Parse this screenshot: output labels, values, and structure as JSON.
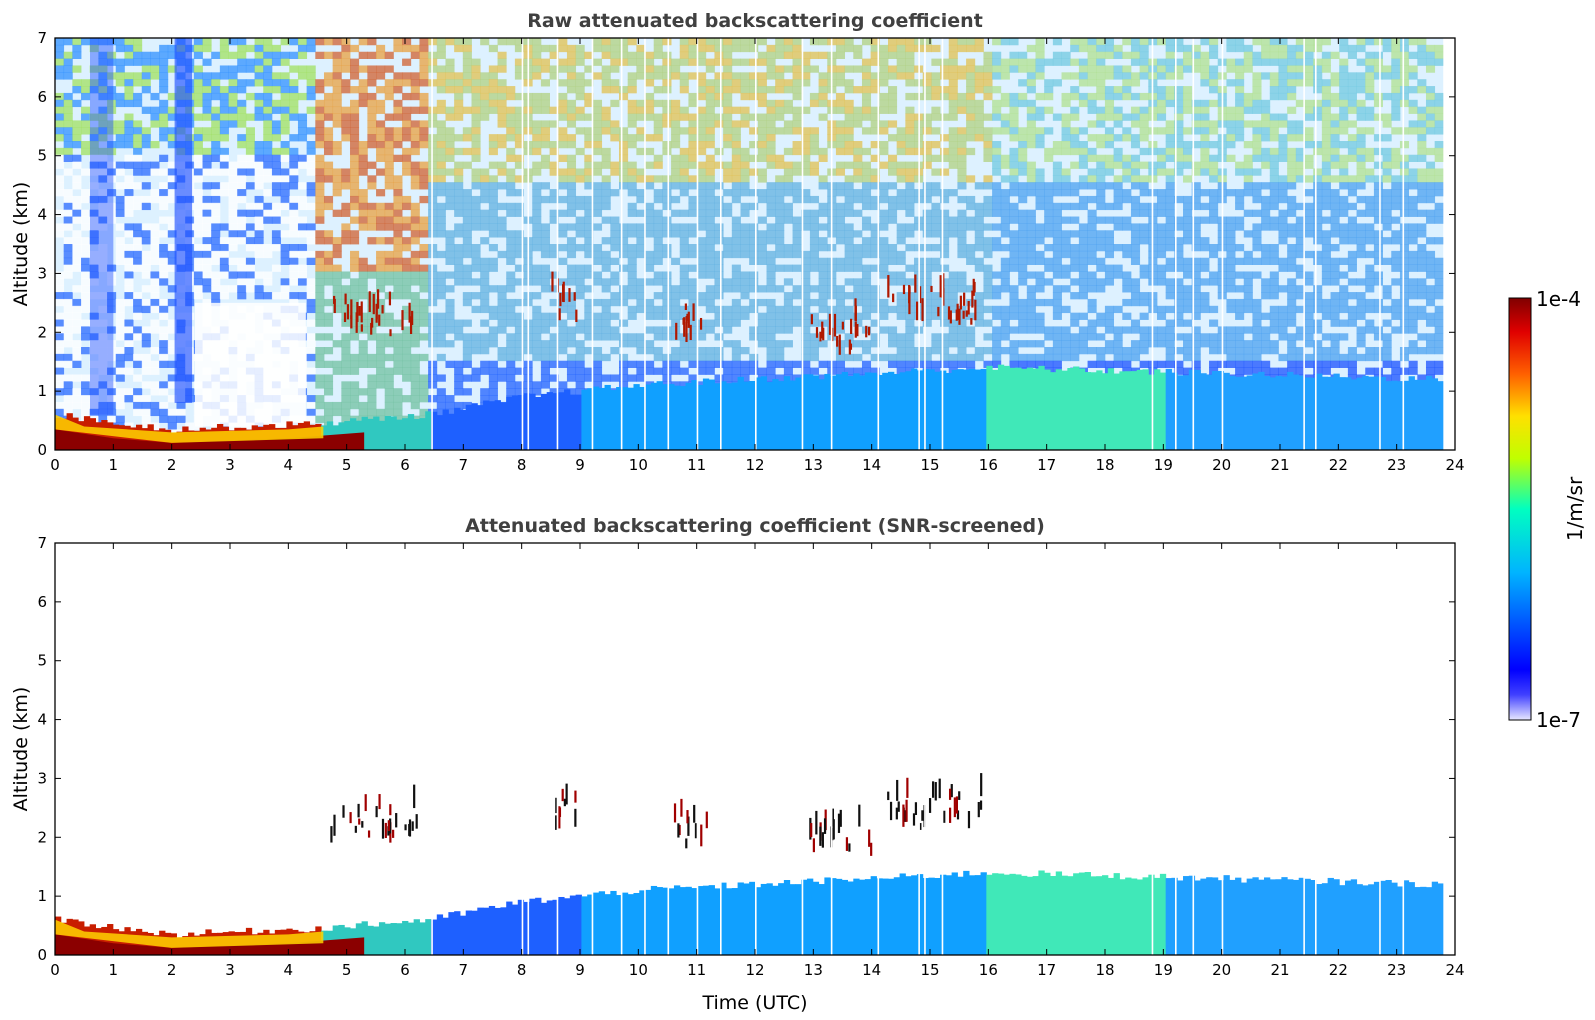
{
  "chart_data": [
    {
      "type": "heatmap",
      "title": "Raw attenuated backscattering coefficient",
      "xlabel": "",
      "ylabel": "Altitude (km)",
      "xlim": [
        0,
        24
      ],
      "ylim": [
        0,
        7
      ],
      "xticks": [
        0,
        1,
        2,
        3,
        4,
        5,
        6,
        7,
        8,
        9,
        10,
        11,
        12,
        13,
        14,
        15,
        16,
        17,
        18,
        19,
        20,
        21,
        22,
        23,
        24
      ],
      "yticks": [
        0,
        1,
        2,
        3,
        4,
        5,
        6,
        7
      ],
      "data_end_time": 23.8,
      "cloud_layers": [
        {
          "t_start": 4.7,
          "t_end": 6.2,
          "altitude_km": 2.2
        },
        {
          "t_start": 8.5,
          "t_end": 9.0,
          "altitude_km": 2.4
        },
        {
          "t_start": 10.6,
          "t_end": 11.2,
          "altitude_km": 2.1
        },
        {
          "t_start": 12.9,
          "t_end": 14.0,
          "altitude_km": 1.9
        },
        {
          "t_start": 14.2,
          "t_end": 15.9,
          "altitude_km": 2.4
        }
      ],
      "boundary_layer": [
        {
          "time": 0,
          "top_km": 0.6
        },
        {
          "time": 2,
          "top_km": 0.35
        },
        {
          "time": 4.5,
          "top_km": 0.45
        },
        {
          "time": 6.4,
          "top_km": 0.6
        },
        {
          "time": 8,
          "top_km": 0.9
        },
        {
          "time": 10,
          "top_km": 1.1
        },
        {
          "time": 16,
          "top_km": 1.4
        },
        {
          "time": 20,
          "top_km": 1.3
        },
        {
          "time": 23.8,
          "top_km": 1.2
        }
      ]
    },
    {
      "type": "heatmap",
      "title": "Attenuated backscattering coefficient (SNR-screened)",
      "xlabel": "Time (UTC)",
      "ylabel": "Altitude (km)",
      "xlim": [
        0,
        24
      ],
      "ylim": [
        0,
        7
      ],
      "xticks": [
        0,
        1,
        2,
        3,
        4,
        5,
        6,
        7,
        8,
        9,
        10,
        11,
        12,
        13,
        14,
        15,
        16,
        17,
        18,
        19,
        20,
        21,
        22,
        23,
        24
      ],
      "yticks": [
        0,
        1,
        2,
        3,
        4,
        5,
        6,
        7
      ],
      "data_end_time": 23.8
    }
  ],
  "colorbar": {
    "label": "1/m/sr",
    "min_label": "1e-7",
    "max_label": "1e-4",
    "colormap": [
      "#ffffff",
      "#0000ff",
      "#00c8ff",
      "#00ffa0",
      "#e6ff00",
      "#ff8c00",
      "#ff0000",
      "#800000"
    ]
  }
}
